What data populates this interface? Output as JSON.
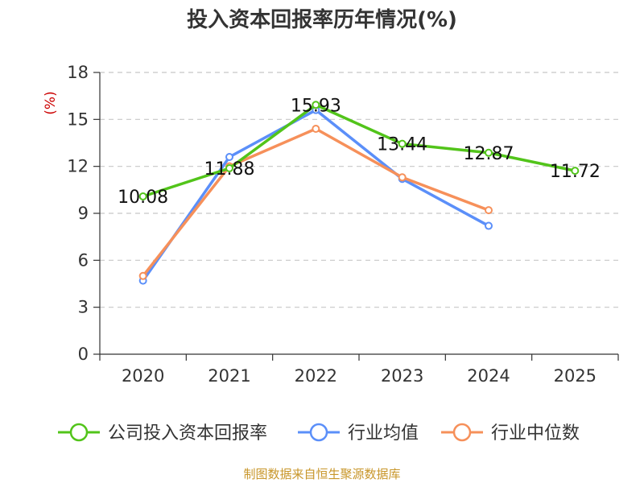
{
  "chart_data": {
    "type": "line",
    "title": "投入资本回报率历年情况(%)",
    "ylabel": "(%)",
    "xlabel": "",
    "ylim": [
      0,
      18
    ],
    "yticks": [
      0,
      3,
      6,
      9,
      12,
      15,
      18
    ],
    "categories": [
      "2020",
      "2021",
      "2022",
      "2023",
      "2024",
      "2025"
    ],
    "series": [
      {
        "name": "公司投入资本回报率",
        "color": "#52c41a",
        "values": [
          10.08,
          11.88,
          15.93,
          13.44,
          12.87,
          11.72
        ],
        "labels": [
          "10.08",
          "11.88",
          "15.93",
          "13.44",
          "12.87",
          "11.72"
        ]
      },
      {
        "name": "行业均值",
        "color": "#5b8ff9",
        "values": [
          4.7,
          12.6,
          15.6,
          11.2,
          8.2,
          null
        ]
      },
      {
        "name": "行业中位数",
        "color": "#f6905a",
        "values": [
          5.0,
          12.0,
          14.4,
          11.3,
          9.2,
          null
        ]
      }
    ],
    "grid": true,
    "legend": "bottom"
  },
  "source": "制图数据来自恒生聚源数据库"
}
